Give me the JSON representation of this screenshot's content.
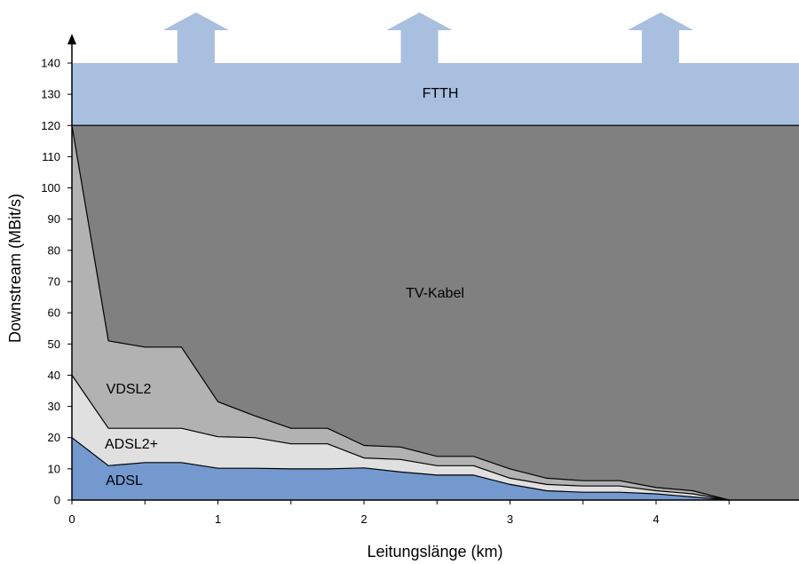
{
  "chart_data": {
    "type": "area",
    "stacked": true,
    "xlabel": "Leitungslänge (km)",
    "ylabel": "Downstream (MBit/s)",
    "xlim": [
      0,
      5
    ],
    "ylim": [
      0,
      140
    ],
    "x_ticks": [
      0,
      1,
      2,
      3,
      4
    ],
    "y_ticks": [
      0,
      10,
      20,
      30,
      40,
      50,
      60,
      70,
      80,
      90,
      100,
      110,
      120,
      130,
      140
    ],
    "grid": false,
    "x": [
      0,
      0.25,
      0.5,
      0.75,
      1,
      1.25,
      1.5,
      1.75,
      2,
      2.25,
      2.5,
      2.75,
      3,
      3.25,
      3.5,
      3.75,
      4,
      4.25,
      4.5
    ],
    "series": [
      {
        "name": "ADSL",
        "color": "#7399cf",
        "values": [
          20,
          11,
          12,
          12,
          10.2,
          10.2,
          10,
          10,
          10.3,
          9,
          8,
          8,
          5,
          3,
          2.5,
          2.5,
          2,
          1,
          0
        ]
      },
      {
        "name": "ADSL2+",
        "color": "#e0e0e0",
        "values": [
          40,
          23,
          23,
          23,
          20.3,
          20,
          18,
          18,
          13.5,
          13,
          11,
          11,
          7,
          5,
          4.5,
          4.5,
          3,
          2,
          0
        ]
      },
      {
        "name": "VDSL2",
        "color": "#b2b2b2",
        "values": [
          120,
          51,
          49,
          49,
          31.5,
          27,
          23,
          23,
          17.5,
          17,
          14,
          14,
          10,
          7,
          6.2,
          6.2,
          4,
          3,
          0
        ]
      },
      {
        "name": "TV-Kabel",
        "color": "#808080",
        "values": [
          120,
          120,
          120,
          120,
          120,
          120,
          120,
          120,
          120,
          120,
          120,
          120,
          120,
          120,
          120,
          120,
          120,
          120,
          120
        ]
      },
      {
        "name": "FTTH",
        "color": "#a8bfe0",
        "values": [
          140,
          140,
          140,
          140,
          140,
          140,
          140,
          140,
          140,
          140,
          140,
          140,
          140,
          140,
          140,
          140,
          140,
          140,
          140
        ],
        "arrows_at_x": [
          0.85,
          2.38,
          4.03
        ]
      }
    ]
  }
}
